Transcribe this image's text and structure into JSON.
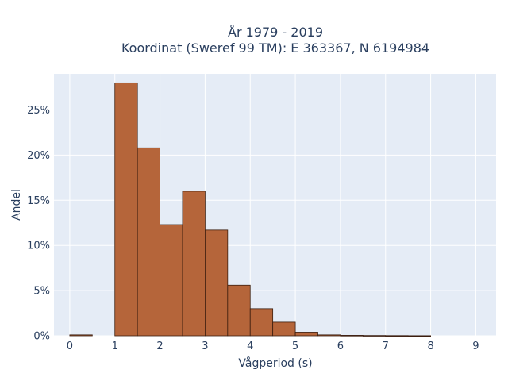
{
  "title": {
    "line1": "År 1979 - 2019",
    "line2": "Koordinat (Sweref 99 TM): E 363367, N 6194984"
  },
  "chart_data": {
    "type": "bar",
    "subtype": "histogram",
    "title": "År 1979 - 2019 / Koordinat (Sweref 99 TM): E 363367, N 6194984",
    "xlabel": "Vågperiod (s)",
    "ylabel": "Andel",
    "xlim": [
      -0.35,
      9.45
    ],
    "ylim": [
      0,
      0.29
    ],
    "x_ticks": [
      0,
      1,
      2,
      3,
      4,
      5,
      6,
      7,
      8,
      9
    ],
    "y_ticks": [
      0,
      0.05,
      0.1,
      0.15,
      0.2,
      0.25
    ],
    "y_tick_labels": [
      "0%",
      "5%",
      "10%",
      "15%",
      "20%",
      "25%"
    ],
    "grid": true,
    "bar_color": "#b5653a",
    "bar_edge_color": "#3b1d0e",
    "background_color": "#e5ecf6",
    "bins": [
      {
        "x0": 0.0,
        "x1": 0.5,
        "value": 0.001
      },
      {
        "x0": 0.5,
        "x1": 1.0,
        "value": 0.0
      },
      {
        "x0": 1.0,
        "x1": 1.5,
        "value": 0.28
      },
      {
        "x0": 1.5,
        "x1": 2.0,
        "value": 0.208
      },
      {
        "x0": 2.0,
        "x1": 2.5,
        "value": 0.123
      },
      {
        "x0": 2.5,
        "x1": 3.0,
        "value": 0.16
      },
      {
        "x0": 3.0,
        "x1": 3.5,
        "value": 0.117
      },
      {
        "x0": 3.5,
        "x1": 4.0,
        "value": 0.056
      },
      {
        "x0": 4.0,
        "x1": 4.5,
        "value": 0.03
      },
      {
        "x0": 4.5,
        "x1": 5.0,
        "value": 0.015
      },
      {
        "x0": 5.0,
        "x1": 5.5,
        "value": 0.004
      },
      {
        "x0": 5.5,
        "x1": 6.0,
        "value": 0.001
      },
      {
        "x0": 6.0,
        "x1": 6.5,
        "value": 0.0005
      },
      {
        "x0": 6.5,
        "x1": 7.0,
        "value": 0.0003
      },
      {
        "x0": 7.0,
        "x1": 7.5,
        "value": 0.0002
      },
      {
        "x0": 7.5,
        "x1": 8.0,
        "value": 0.0001
      }
    ]
  }
}
